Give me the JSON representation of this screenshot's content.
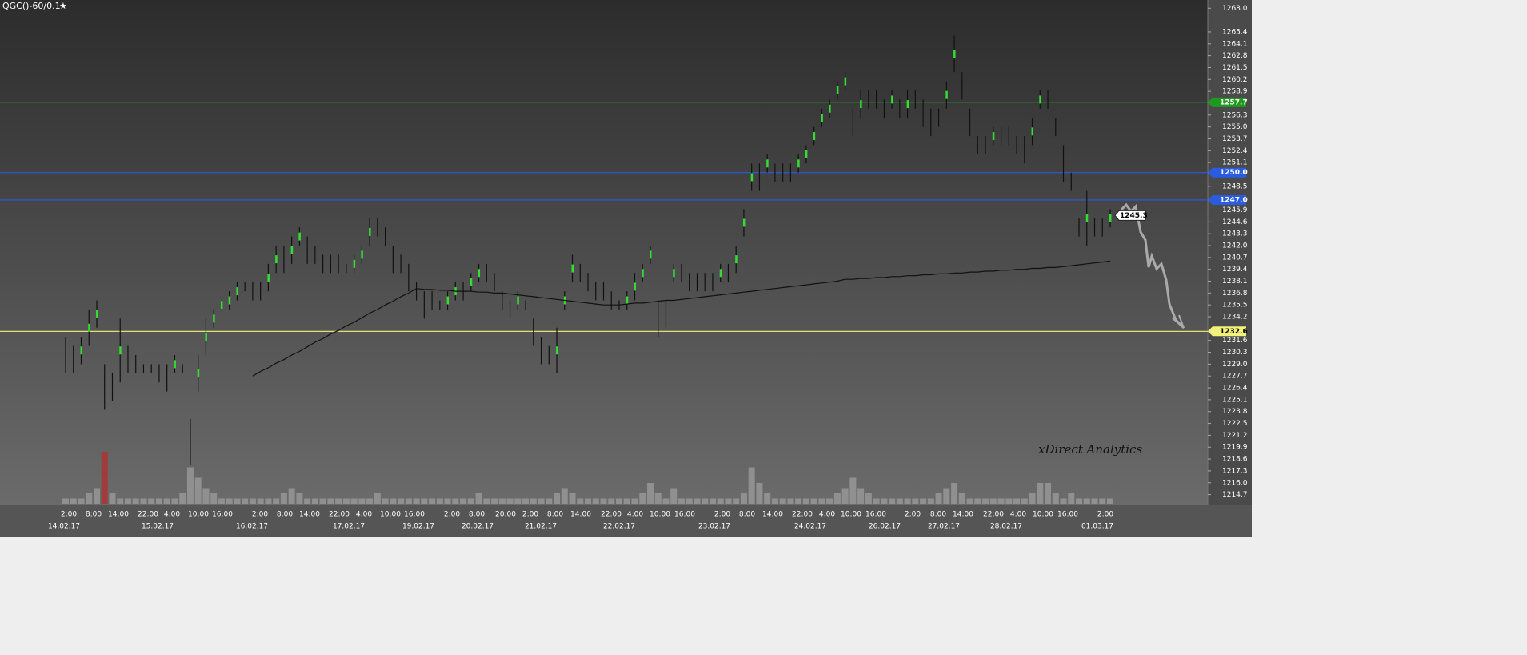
{
  "chart_data": {
    "type": "range_bar",
    "title": "QGC()-60/0.1",
    "watermark": "xDirect Analytics",
    "ylim": [
      1213.7,
      1268.9
    ],
    "yticks": [
      {
        "value": 1268.0,
        "label": "1268.0"
      },
      1265.4,
      1264.1,
      1262.8,
      1261.5,
      1260.2,
      1258.9,
      1257.7,
      1256.3,
      {
        "value": 1255.0,
        "label": "1255.0"
      },
      1253.7,
      1252.4,
      1251.1,
      {
        "value": 1250.0,
        "label": "1250.0"
      },
      1248.5,
      {
        "value": 1247.0,
        "label": "1247.0"
      },
      1245.9,
      1244.6,
      1243.3,
      {
        "value": 1242.0,
        "label": "1242.0"
      },
      1240.7,
      1239.4,
      1238.1,
      1236.8,
      1235.5,
      1234.2,
      1232.6,
      1231.6,
      1230.3,
      {
        "value": 1229.0,
        "label": "1229.0"
      },
      1227.7,
      1226.4,
      1225.1,
      1223.8,
      1222.5,
      1221.2,
      1219.9,
      1218.6,
      1217.3,
      {
        "value": 1216.0,
        "label": "1216.0"
      },
      1214.7
    ],
    "time_labels": [
      "2:00",
      "8:00",
      "14:00",
      "22:00",
      "4:00",
      "10:00",
      "16:00",
      "2:00",
      "8:00",
      "14:00",
      "22:00",
      "4:00",
      "10:00",
      "16:00",
      "2:00",
      "8:00",
      "20:00",
      "2:00",
      "8:00",
      "14:00",
      "22:00",
      "4:00",
      "10:00",
      "16:00",
      "2:00",
      "8:00",
      "14:00",
      "22:00",
      "4:00",
      "10:00",
      "16:00",
      "2:00",
      "8:00",
      "14:00",
      "22:00",
      "4:00",
      "10:00",
      "16:00",
      "2:00"
    ],
    "date_labels": [
      "14.02.17",
      "15.02.17",
      "16.02.17",
      "17.02.17",
      "19.02.17",
      "20.02.17",
      "21.02.17",
      "22.02.17",
      "23.02.17",
      "24.02.17",
      "26.02.17",
      "27.02.17",
      "28.02.17",
      "01.03.17"
    ],
    "bar_color": "#111111",
    "up_color": "#33dd33",
    "lows": [
      1228,
      1228,
      1229,
      1231,
      1233,
      1224,
      1225,
      1227,
      1228,
      1228,
      1228,
      1228,
      1227,
      1226,
      1228,
      1228,
      1218,
      1226,
      1230,
      1233,
      1235,
      1235,
      1236,
      1237,
      1236,
      1236,
      1237,
      1239,
      1239,
      1240,
      1242,
      1240,
      1240,
      1239,
      1239,
      1239,
      1239,
      1239,
      1240,
      1242,
      1243,
      1242,
      1239,
      1239,
      1237,
      1236,
      1234,
      1235,
      1235,
      1235,
      1236,
      1236,
      1237,
      1238,
      1238,
      1237,
      1235,
      1234,
      1235,
      1235,
      1231,
      1229,
      1229,
      1228,
      1235,
      1238,
      1238,
      1237,
      1236,
      1236,
      1235,
      1235,
      1235,
      1236,
      1238,
      1240,
      1232,
      1233,
      1238,
      1238,
      1237,
      1237,
      1237,
      1237,
      1238,
      1238,
      1239,
      1243,
      1248,
      1248,
      1250,
      1249,
      1249,
      1249,
      1250,
      1251,
      1253,
      1255,
      1256,
      1258,
      1259,
      1254,
      1256,
      1257,
      1257,
      1256,
      1257,
      1256,
      1256,
      1257,
      1255,
      1254,
      1255,
      1257,
      1261,
      1258,
      1254,
      1252,
      1252,
      1253,
      1253,
      1253,
      1252,
      1251,
      1253,
      1257,
      1257,
      1254,
      1249,
      1248,
      1243,
      1242,
      1243,
      1243,
      1244
    ],
    "highs": [
      1232,
      1231,
      1232,
      1235,
      1236,
      1229,
      1228,
      1234,
      1231,
      1230,
      1229,
      1229,
      1229,
      1229,
      1230,
      1229,
      1223,
      1230,
      1234,
      1235,
      1236,
      1237,
      1238,
      1238,
      1238,
      1238,
      1240,
      1242,
      1242,
      1243,
      1244,
      1243,
      1242,
      1241,
      1241,
      1241,
      1240,
      1241,
      1242,
      1245,
      1245,
      1244,
      1242,
      1241,
      1240,
      1238,
      1237,
      1237,
      1236,
      1237,
      1238,
      1238,
      1239,
      1240,
      1240,
      1239,
      1237,
      1236,
      1237,
      1236,
      1234,
      1232,
      1231,
      1233,
      1237,
      1241,
      1240,
      1239,
      1238,
      1238,
      1237,
      1236,
      1237,
      1239,
      1240,
      1242,
      1236,
      1236,
      1240,
      1240,
      1239,
      1239,
      1239,
      1239,
      1240,
      1240,
      1242,
      1246,
      1251,
      1251,
      1252,
      1251,
      1251,
      1251,
      1252,
      1253,
      1255,
      1257,
      1258,
      1260,
      1261,
      1257,
      1259,
      1259,
      1259,
      1258,
      1259,
      1258,
      1259,
      1259,
      1258,
      1257,
      1257,
      1260,
      1265,
      1261,
      1257,
      1254,
      1254,
      1255,
      1255,
      1255,
      1254,
      1254,
      1256,
      1259,
      1259,
      1256,
      1253,
      1250,
      1245,
      1248,
      1245,
      1245,
      1246
    ],
    "moving_average": [
      null,
      null,
      null,
      null,
      null,
      null,
      null,
      null,
      null,
      null,
      null,
      null,
      null,
      null,
      null,
      null,
      null,
      null,
      null,
      null,
      null,
      null,
      null,
      null,
      1227.7,
      1228.2,
      1228.6,
      1229.1,
      1229.5,
      1230.0,
      1230.4,
      1230.9,
      1231.4,
      1231.8,
      1232.3,
      1232.7,
      1233.2,
      1233.6,
      1234.1,
      1234.6,
      1235.0,
      1235.5,
      1235.9,
      1236.4,
      1236.8,
      1237.3,
      1237.2,
      1237.2,
      1237.1,
      1237.1,
      1237.0,
      1237.0,
      1237.0,
      1236.9,
      1236.9,
      1236.8,
      1236.8,
      1236.7,
      1236.6,
      1236.5,
      1236.4,
      1236.3,
      1236.2,
      1236.1,
      1236.0,
      1235.9,
      1235.8,
      1235.7,
      1235.6,
      1235.5,
      1235.5,
      1235.5,
      1235.6,
      1235.7,
      1235.7,
      1235.8,
      1235.9,
      1236.0,
      1236.0,
      1236.1,
      1236.2,
      1236.3,
      1236.4,
      1236.5,
      1236.6,
      1236.7,
      1236.8,
      1236.9,
      1237.0,
      1237.1,
      1237.2,
      1237.3,
      1237.4,
      1237.5,
      1237.6,
      1237.7,
      1237.8,
      1237.9,
      1238.0,
      1238.1,
      1238.3,
      1238.3,
      1238.4,
      1238.4,
      1238.5,
      1238.5,
      1238.6,
      1238.6,
      1238.7,
      1238.7,
      1238.8,
      1238.8,
      1238.9,
      1238.9,
      1239.0,
      1239.0,
      1239.1,
      1239.1,
      1239.2,
      1239.2,
      1239.3,
      1239.3,
      1239.4,
      1239.4,
      1239.5,
      1239.5,
      1239.6,
      1239.6,
      1239.7,
      1239.8,
      1239.9,
      1240.0,
      1240.1,
      1240.2,
      1240.3
    ],
    "ma_color": "#111111",
    "volume": [
      1,
      1,
      1,
      2,
      3,
      10,
      2,
      1,
      1,
      1,
      1,
      1,
      1,
      1,
      1,
      2,
      7,
      5,
      3,
      2,
      1,
      1,
      1,
      1,
      1,
      1,
      1,
      1,
      2,
      3,
      2,
      1,
      1,
      1,
      1,
      1,
      1,
      1,
      1,
      1,
      2,
      1,
      1,
      1,
      1,
      1,
      1,
      1,
      1,
      1,
      1,
      1,
      1,
      2,
      1,
      1,
      1,
      1,
      1,
      1,
      1,
      1,
      1,
      2,
      3,
      2,
      1,
      1,
      1,
      1,
      1,
      1,
      1,
      1,
      2,
      4,
      2,
      1,
      3,
      1,
      1,
      1,
      1,
      1,
      1,
      1,
      1,
      2,
      7,
      4,
      2,
      1,
      1,
      1,
      1,
      1,
      1,
      1,
      1,
      2,
      3,
      5,
      3,
      2,
      1,
      1,
      1,
      1,
      1,
      1,
      1,
      1,
      2,
      3,
      4,
      2,
      1,
      1,
      1,
      1,
      1,
      1,
      1,
      1,
      2,
      4,
      4,
      2,
      1,
      2,
      1,
      1,
      1,
      1,
      1
    ],
    "levels": [
      {
        "value": 1257.7,
        "color": "#1f9a1f",
        "text_color": "#ffffff"
      },
      {
        "value": 1250.0,
        "label": "1250.0",
        "color": "#2a5ce0",
        "text_color": "#ffffff"
      },
      {
        "value": 1247.0,
        "label": "1247.0",
        "color": "#2a5ce0",
        "text_color": "#ffffff"
      },
      {
        "value": 1232.6,
        "color": "#f2f27a",
        "text_color": "#000000"
      }
    ],
    "last_price": 1245.3
  }
}
